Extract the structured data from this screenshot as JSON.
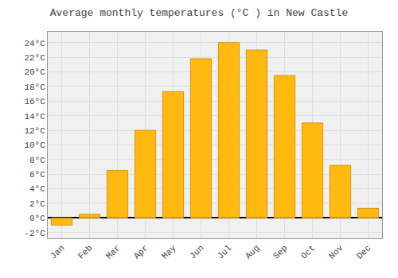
{
  "chart_data": {
    "type": "bar",
    "title": "Average monthly temperatures (°C ) in New Castle",
    "categories": [
      "Jan",
      "Feb",
      "Mar",
      "Apr",
      "May",
      "Jun",
      "Jul",
      "Aug",
      "Sep",
      "Oct",
      "Nov",
      "Dec"
    ],
    "values": [
      -1.0,
      0.5,
      6.5,
      12.0,
      17.3,
      21.8,
      24.0,
      23.0,
      19.5,
      13.0,
      7.2,
      1.3
    ],
    "color": "#FFB90F",
    "ylim": [
      -2.8,
      25.5
    ],
    "yticks": [
      {
        "value": -2,
        "label": "-2°C"
      },
      {
        "value": 0,
        "label": "0°C"
      },
      {
        "value": 2,
        "label": "2°C"
      },
      {
        "value": 4,
        "label": "4°C"
      },
      {
        "value": 6,
        "label": "6°C"
      },
      {
        "value": 8,
        "label": "8°C"
      },
      {
        "value": 10,
        "label": "10°C"
      },
      {
        "value": 12,
        "label": "12°C"
      },
      {
        "value": 14,
        "label": "14°C"
      },
      {
        "value": 16,
        "label": "16°C"
      },
      {
        "value": 18,
        "label": "18°C"
      },
      {
        "value": 20,
        "label": "20°C"
      },
      {
        "value": 22,
        "label": "22°C"
      },
      {
        "value": 24,
        "label": "24°C"
      }
    ],
    "grid": true
  }
}
